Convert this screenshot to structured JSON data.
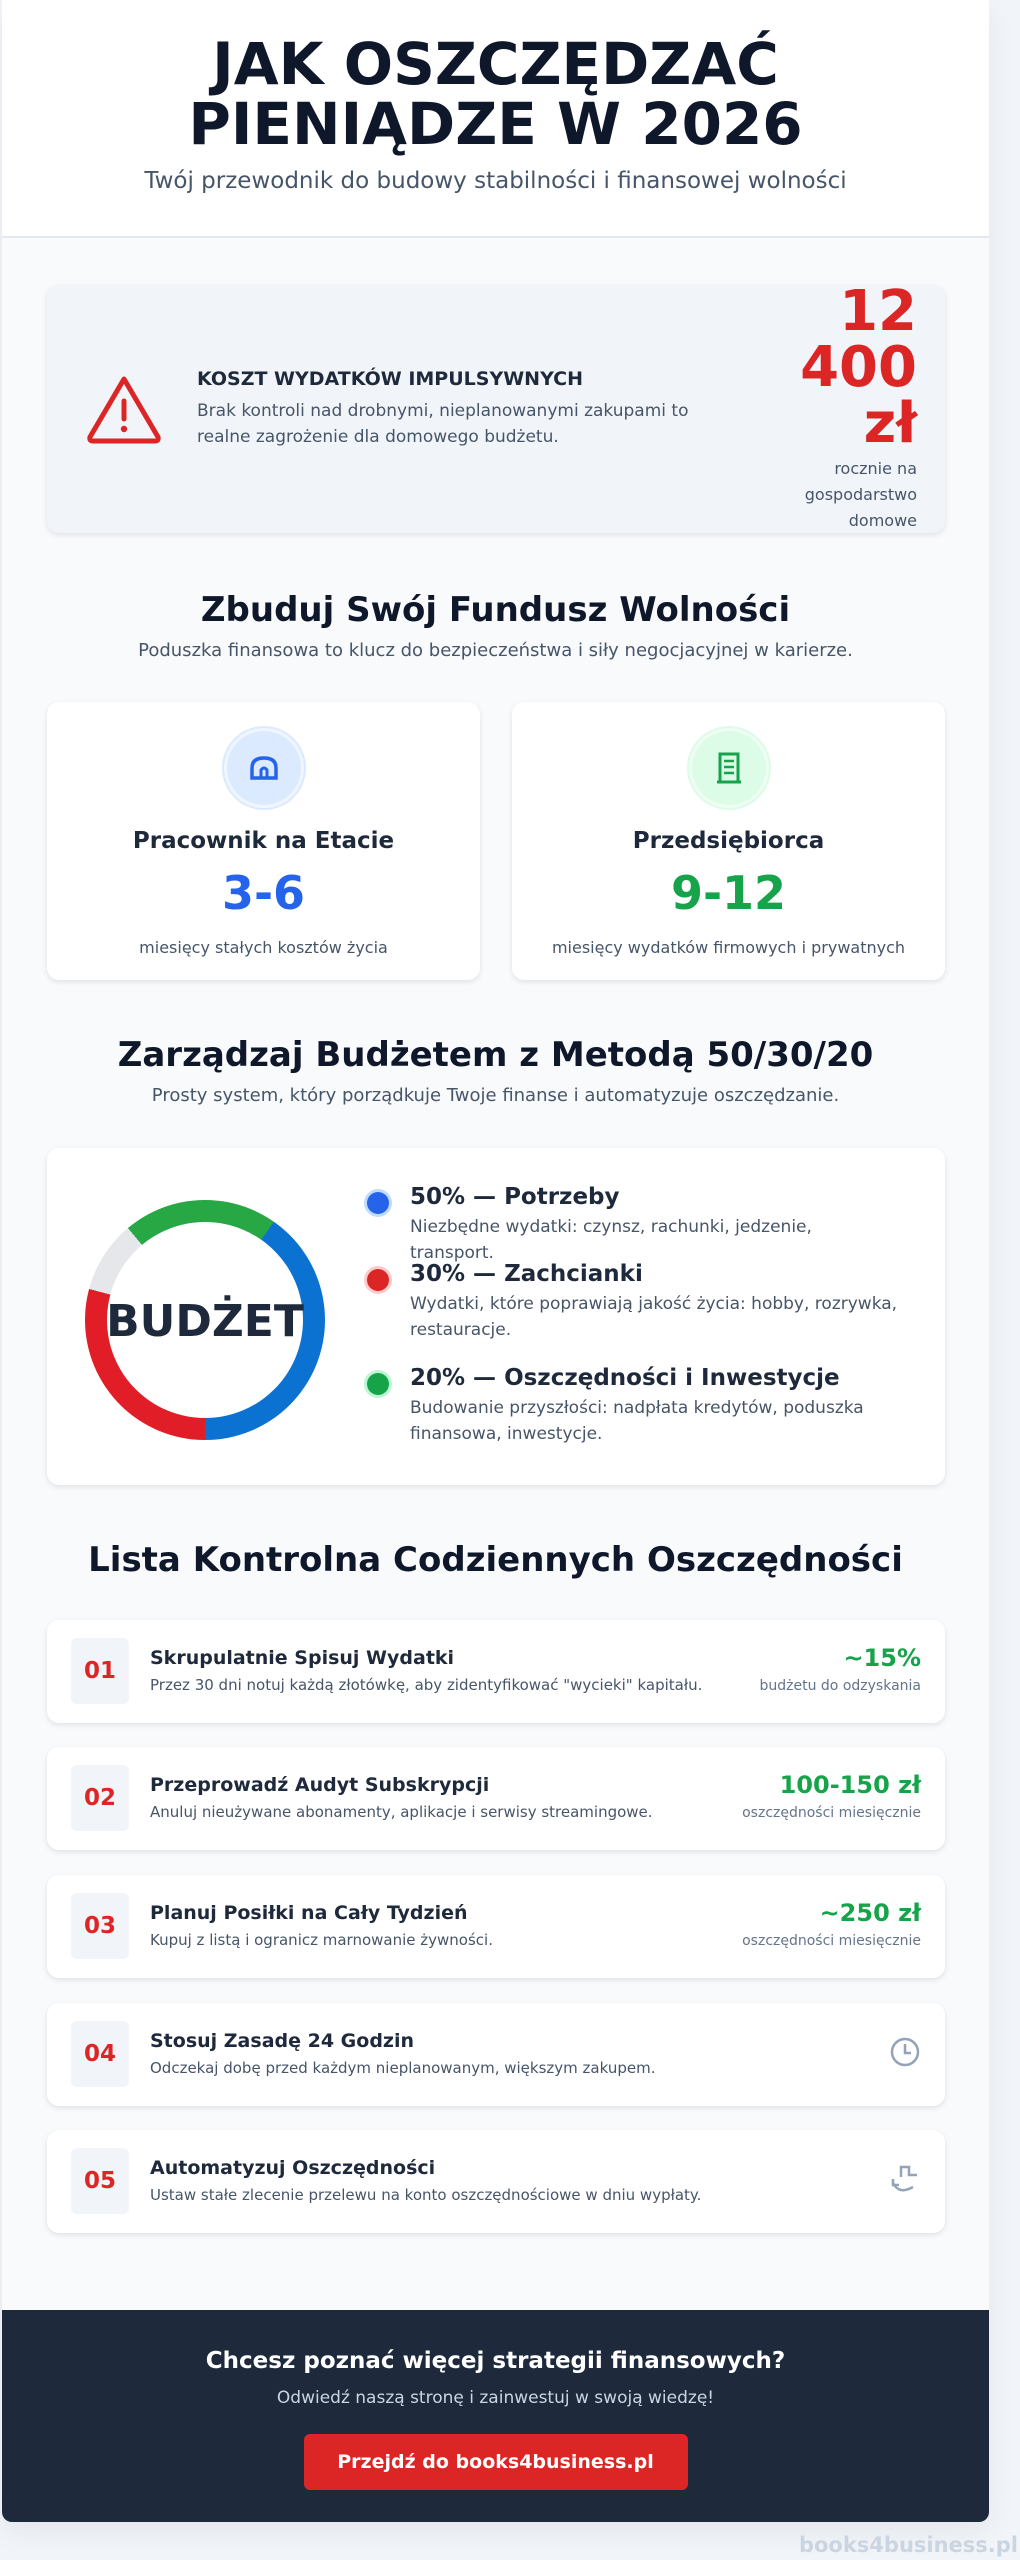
{
  "header": {
    "title": "JAK OSZCZĘDZAĆ PIENIĄDZE W 2026",
    "subtitle": "Twój przewodnik do budowy stabilności i finansowej wolności"
  },
  "alert": {
    "icon": "warning-triangle-icon",
    "title": "KOSZT WYDATKÓW IMPULSYWNYCH",
    "text": "Brak kontroli nad drobnymi, nieplanowanymi zakupami to realne zagrożenie dla domowego budżetu.",
    "amount": "12 400 zł",
    "amount_label": "rocznie na gospodarstwo domowe"
  },
  "fund": {
    "title": "Zbuduj Swój Fundusz Wolności",
    "subtitle": "Poduszka finansowa to klucz do bezpieczeństwa i siły negocjacyjnej w karierze.",
    "cards": [
      {
        "icon": "briefcase-icon",
        "name": "Pracownik na Etacie",
        "value": "3-6",
        "desc": "miesięcy stałych kosztów życia",
        "color": "#2563eb"
      },
      {
        "icon": "building-icon",
        "name": "Przedsiębiorca",
        "value": "9-12",
        "desc": "miesięcy wydatków firmowych i prywatnych",
        "color": "#16a34a"
      }
    ]
  },
  "budget": {
    "title": "Zarządzaj Budżetem z Metodą 50/30/20",
    "subtitle": "Prosty system, który porządkuje Twoje finanse i automatyzuje oszczędzanie.",
    "center_label": "BUDŻET",
    "items": [
      {
        "title": "50% — Potrzeby",
        "desc": "Niezbędne wydatki: czynsz, rachunki, jedzenie, transport.",
        "color": "#2563eb"
      },
      {
        "title": "30% — Zachcianki",
        "desc": "Wydatki, które poprawiają jakość życia: hobby, rozrywka, restauracje.",
        "color": "#dc2626"
      },
      {
        "title": "20% — Oszczędności i Inwestycje",
        "desc": "Budowanie przyszłości: nadpłata kredytów, poduszka finansowa, inwestycje.",
        "color": "#16a34a"
      }
    ]
  },
  "chart_data": {
    "type": "pie",
    "categories": [
      "Potrzeby",
      "Zachcianki",
      "Oszczędności i Inwestycje"
    ],
    "values": [
      50,
      30,
      20
    ],
    "colors": [
      "#0b72d1",
      "#e11d27",
      "#28a745"
    ],
    "center_label": "BUDŻET"
  },
  "checklist": {
    "title": "Lista Kontrolna Codziennych Oszczędności",
    "items": [
      {
        "no": "01",
        "title": "Skrupulatnie Spisuj Wydatki",
        "desc": "Przez 30 dni notuj każdą złotówkę, aby zidentyfikować \"wycieki\" kapitału.",
        "value": "~15%",
        "value_label": "budżetu do odzyskania"
      },
      {
        "no": "02",
        "title": "Przeprowadź Audyt Subskrypcji",
        "desc": "Anuluj nieużywane abonamenty, aplikacje i serwisy streamingowe.",
        "value": "100-150 zł",
        "value_label": "oszczędności miesięcznie"
      },
      {
        "no": "03",
        "title": "Planuj Posiłki na Cały Tydzień",
        "desc": "Kupuj z listą i ogranicz marnowanie żywności.",
        "value": "~250 zł",
        "value_label": "oszczędności miesięcznie"
      },
      {
        "no": "04",
        "title": "Stosuj Zasadę 24 Godzin",
        "desc": "Odczekaj dobę przed każdym nieplanowanym, większym zakupem.",
        "icon": "clock-icon"
      },
      {
        "no": "05",
        "title": "Automatyzuj Oszczędności",
        "desc": "Ustaw stałe zlecenie przelewu na konto oszczędnościowe w dniu wypłaty.",
        "icon": "auto-transfer-icon"
      }
    ]
  },
  "footer": {
    "title": "Chcesz poznać więcej strategii finansowych?",
    "text": "Odwiedź naszą stronę i zainwestuj w swoją wiedzę!",
    "button": "Przejdź do books4business.pl"
  },
  "watermark": "books4business.pl"
}
